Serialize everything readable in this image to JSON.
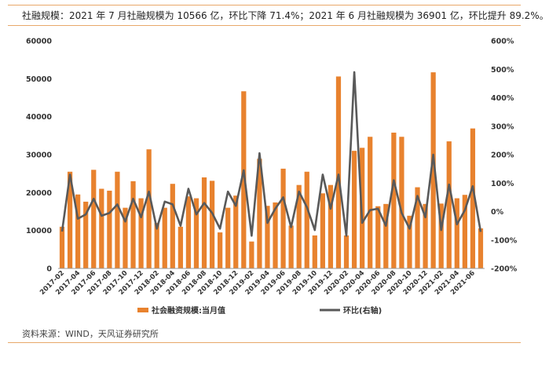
{
  "header": {
    "title": "社融规模：2021 年 7 月社融规模为 10566 亿，环比下降 71.4%；2021 年 6 月社融规模为 36901 亿，环比提升 89.2%。"
  },
  "footer": {
    "source": "资料来源：WIND，天风证券研究所"
  },
  "colors": {
    "bar": "#e8822e",
    "line": "#595959",
    "rule": "#e8a86a"
  },
  "chart_data": {
    "type": "bar",
    "secondary_type": "line",
    "x": [
      "2017-02",
      "2017-03",
      "2017-04",
      "2017-05",
      "2017-06",
      "2017-07",
      "2017-08",
      "2017-09",
      "2017-10",
      "2017-11",
      "2017-12",
      "2018-01",
      "2018-02",
      "2018-03",
      "2018-04",
      "2018-05",
      "2018-06",
      "2018-07",
      "2018-08",
      "2018-09",
      "2018-10",
      "2018-11",
      "2018-12",
      "2019-01",
      "2019-02",
      "2019-03",
      "2019-04",
      "2019-05",
      "2019-06",
      "2019-07",
      "2019-08",
      "2019-09",
      "2019-10",
      "2019-11",
      "2019-12",
      "2020-01",
      "2020-02",
      "2020-03",
      "2020-04",
      "2020-05",
      "2020-06",
      "2020-07",
      "2020-08",
      "2020-09",
      "2020-10",
      "2020-11",
      "2020-12",
      "2021-01",
      "2021-02",
      "2021-03",
      "2021-04",
      "2021-05",
      "2021-06",
      "2021-07"
    ],
    "xtick_labels": [
      "2017-02",
      "2017-04",
      "2017-06",
      "2017-08",
      "2017-10",
      "2017-12",
      "2018-02",
      "2018-04",
      "2018-06",
      "2018-08",
      "2018-10",
      "2018-12",
      "2019-02",
      "2019-04",
      "2019-06",
      "2019-08",
      "2019-10",
      "2019-12",
      "2020-02",
      "2020-04",
      "2020-06",
      "2020-08",
      "2020-10",
      "2020-12",
      "2021-02",
      "2021-04",
      "2021-06"
    ],
    "series": [
      {
        "name": "社会融资规模:当月值",
        "axis": "left",
        "type": "bar",
        "values": [
          11000,
          25500,
          19500,
          17600,
          26000,
          21000,
          20500,
          25500,
          16000,
          23000,
          18500,
          31400,
          12000,
          16000,
          22300,
          11000,
          19000,
          18500,
          24000,
          23100,
          9500,
          16000,
          19200,
          46700,
          7100,
          28900,
          16500,
          17400,
          26300,
          11300,
          22000,
          25500,
          8700,
          19800,
          22000,
          50600,
          8700,
          31000,
          31800,
          34700,
          16400,
          17000,
          35800,
          34700,
          13900,
          21400,
          17000,
          51700,
          17100,
          33500,
          18500,
          19400,
          36900,
          10566
        ]
      },
      {
        "name": "环比(右轴)",
        "axis": "right",
        "type": "line",
        "values": [
          -70,
          130,
          -25,
          -10,
          45,
          -15,
          -5,
          25,
          -35,
          45,
          -20,
          70,
          -60,
          35,
          25,
          -50,
          80,
          -10,
          30,
          -5,
          -60,
          70,
          20,
          145,
          -85,
          205,
          -40,
          10,
          50,
          -55,
          70,
          15,
          -65,
          130,
          10,
          130,
          -85,
          490,
          -40,
          5,
          10,
          -50,
          110,
          -5,
          -60,
          55,
          -20,
          200,
          -65,
          95,
          -45,
          5,
          89.2,
          -71.4
        ]
      }
    ],
    "ylim": [
      0,
      60000
    ],
    "yticks": [
      "0",
      "10000",
      "20000",
      "30000",
      "40000",
      "50000",
      "60000"
    ],
    "y2lim": [
      -200,
      600
    ],
    "y2ticks": [
      "-200%",
      "-100%",
      "0%",
      "100%",
      "200%",
      "300%",
      "400%",
      "500%",
      "600%"
    ],
    "legend_position": "bottom",
    "grid": false
  }
}
